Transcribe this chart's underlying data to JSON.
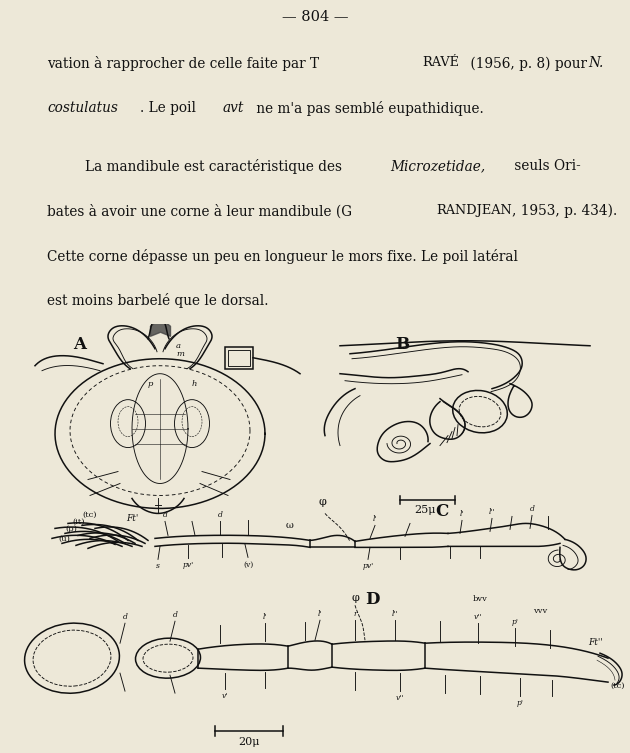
{
  "bg_color": "#ede8d8",
  "page_number": "— 804 —",
  "para1_lines": [
    "vation à rapprocher de celle faite par Travé (1956, p. 8) pour N.",
    "costulatus. Le poil avt ne m'a pas semblé eupathidique."
  ],
  "para2_lines": [
    "    La mandibule est caractéristique des Microzetidae, seuls Ori-",
    "bates à avoir une corne à leur mandibule (Grandjean, 1953, p. 434).",
    "Cette corne dépasse un peu en longueur le mors fixe. Le poil latéral",
    "est moins barbelé que le dorsal."
  ],
  "text_color": "#111111",
  "line_color": "#111111",
  "font_size_main": 9.8,
  "font_size_page": 10.5
}
